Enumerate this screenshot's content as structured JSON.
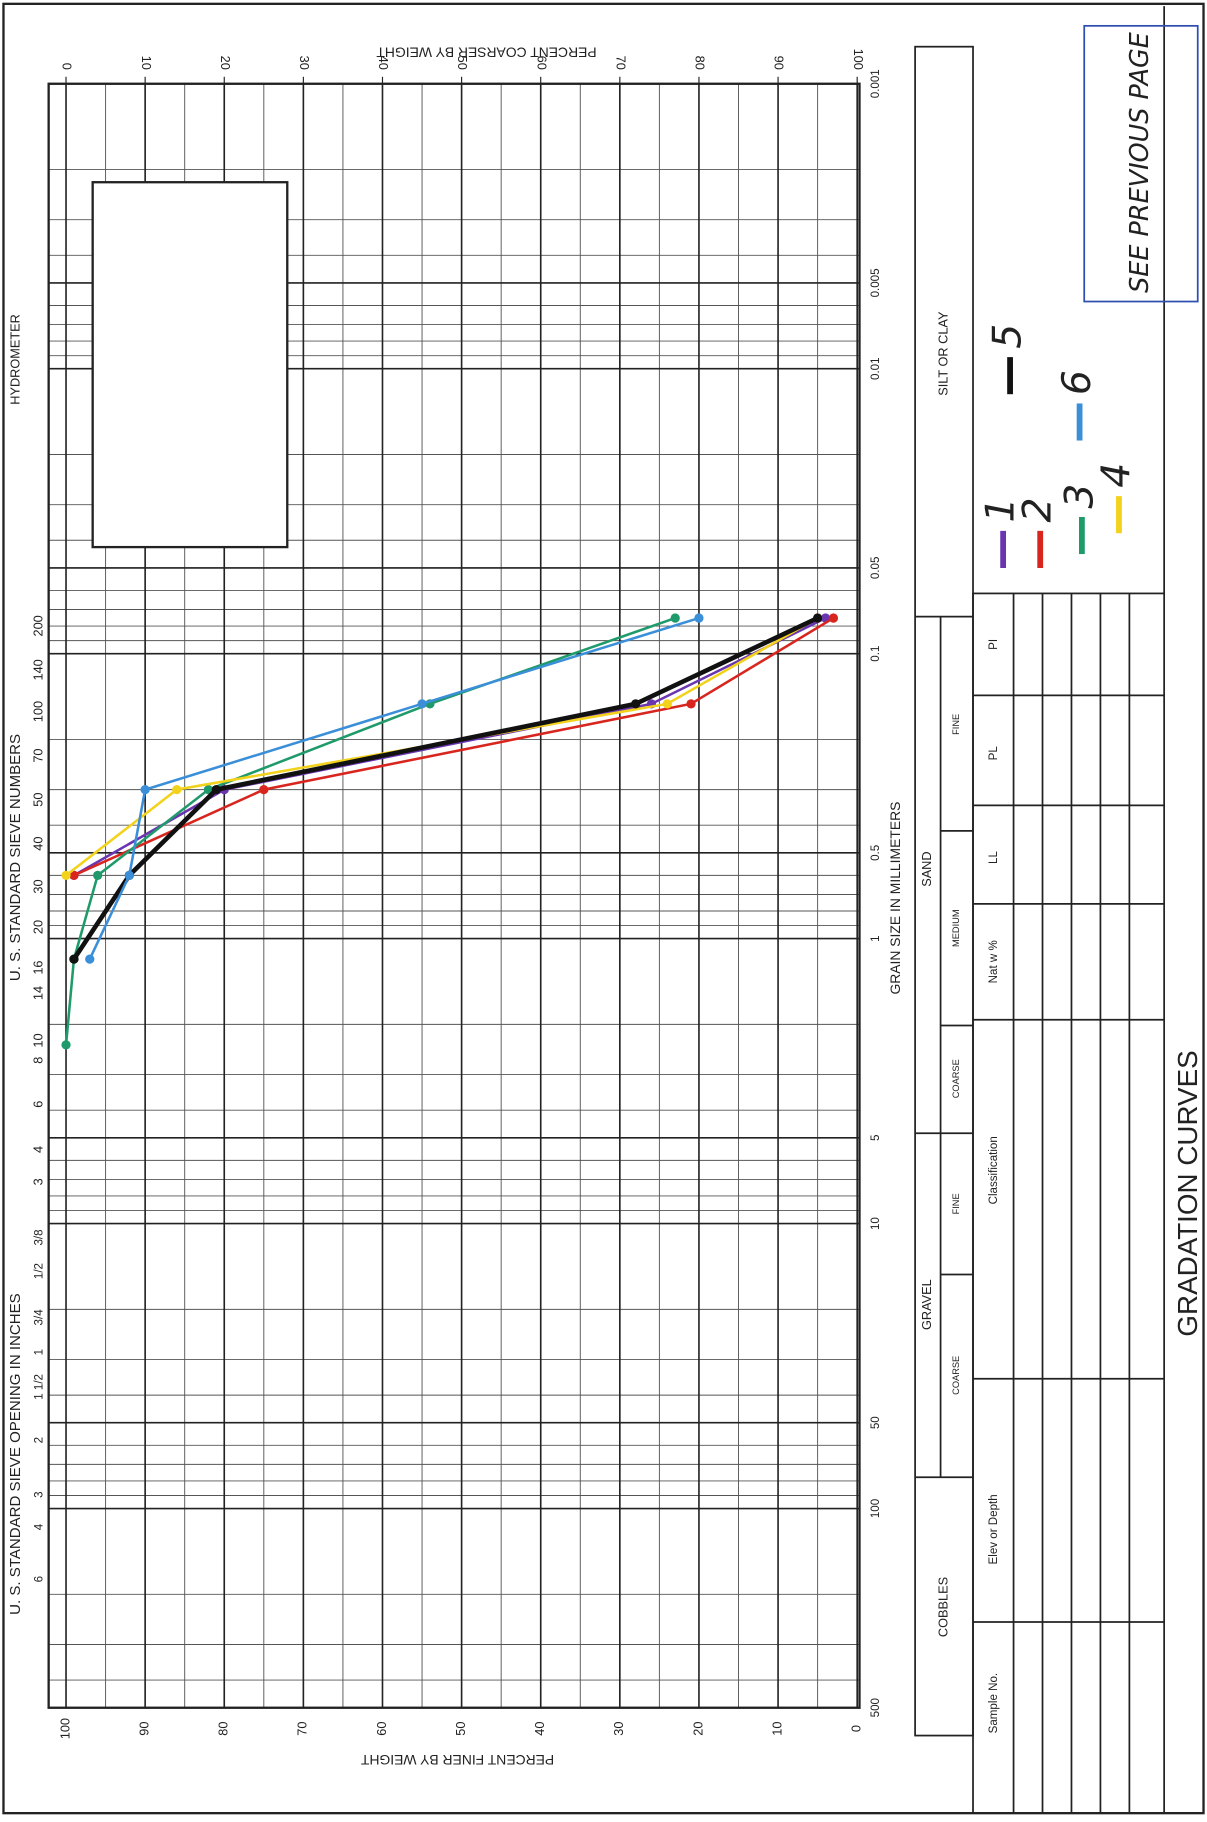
{
  "header": {
    "hydrometer": "HYDROMETER",
    "sieve_numbers_title": "U. S. STANDARD SIEVE NUMBERS",
    "sieve_inches_title": "U. S. STANDARD SIEVE OPENING IN INCHES",
    "title": "GRADATION CURVES"
  },
  "chart": {
    "percent_coarser_title": "PERCENT COARSER BY WEIGHT",
    "percent_finer_title": "PERCENT FINER BY WEIGHT",
    "grain_size_title": "GRAIN SIZE IN MILLIMETERS",
    "percent_range": [
      0,
      100
    ],
    "grain_size_range": [
      0.001,
      500
    ],
    "log_scale": true,
    "percent_coarser_ticks": [
      0,
      10,
      20,
      30,
      40,
      50,
      60,
      70,
      80,
      90,
      100
    ],
    "percent_finer_ticks": [
      100,
      90,
      80,
      70,
      60,
      50,
      40,
      30,
      20,
      10,
      0
    ],
    "grain_size_ticks": [
      0.001,
      0.005,
      0.01,
      0.05,
      0.1,
      0.5,
      1,
      5,
      10,
      50,
      100,
      500
    ],
    "sieve_numbers": [
      "200",
      "140",
      "100",
      "70",
      "50",
      "40",
      "30",
      "20",
      "16",
      "14",
      "10",
      "8",
      "6",
      "4",
      "3"
    ],
    "sieve_inches": [
      "3/8",
      "1/2",
      "3/4",
      "1",
      "1 1/2",
      "2",
      "3",
      "4",
      "6"
    ],
    "curves": [
      {
        "name": "1",
        "color": "#6a35b0",
        "grain_size_mm": [
          0.6,
          0.3,
          0.15,
          0.075
        ],
        "percent_finer": [
          99,
          80,
          26,
          4
        ]
      },
      {
        "name": "2",
        "color": "#d8261f",
        "grain_size_mm": [
          0.6,
          0.3,
          0.15,
          0.075
        ],
        "percent_finer": [
          99,
          75,
          21,
          3
        ]
      },
      {
        "name": "3",
        "color": "#1f9a6a",
        "grain_size_mm": [
          2.36,
          1.18,
          0.6,
          0.3,
          0.15,
          0.075
        ],
        "percent_finer": [
          100,
          99,
          96,
          82,
          54,
          23
        ]
      },
      {
        "name": "4",
        "color": "#f2d21b",
        "grain_size_mm": [
          0.6,
          0.3,
          0.15,
          0.075
        ],
        "percent_finer": [
          100,
          86,
          24,
          5
        ]
      },
      {
        "name": "5",
        "color": "#111111",
        "grain_size_mm": [
          1.18,
          0.6,
          0.3,
          0.15,
          0.075
        ],
        "percent_finer": [
          99,
          92,
          81,
          28,
          5
        ]
      },
      {
        "name": "6",
        "color": "#3a8fd8",
        "grain_size_mm": [
          1.18,
          0.6,
          0.3,
          0.15,
          0.075
        ],
        "percent_finer": [
          97,
          92,
          90,
          55,
          20
        ]
      }
    ]
  },
  "soil_classes": {
    "silt_clay": "SILT OR CLAY",
    "sand": "SAND",
    "sand_fine": "FINE",
    "sand_medium": "MEDIUM",
    "sand_coarse": "COARSE",
    "gravel": "GRAVEL",
    "gravel_fine": "FINE",
    "gravel_coarse": "COARSE",
    "cobbles": "COBBLES"
  },
  "table": {
    "headers": [
      "Sample No.",
      "Elev or Depth",
      "Classification",
      "Nat w %",
      "LL",
      "PL",
      "PI"
    ]
  },
  "note": {
    "text": "SEE PREVIOUS PAGE"
  }
}
